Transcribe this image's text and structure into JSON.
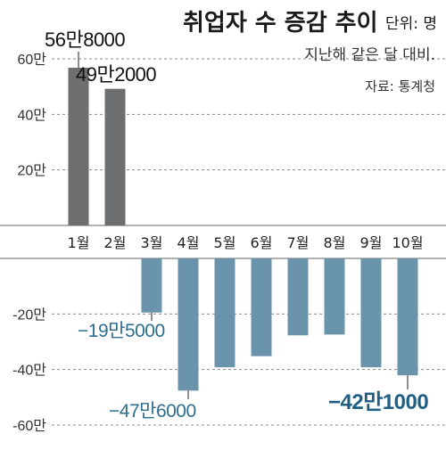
{
  "chart_data": {
    "type": "bar",
    "title": "취업자 수 증감 추이",
    "unit_label": "단위: 명",
    "subtitle": "지난해 같은 달 대비.",
    "source": "자료: 통계청",
    "categories": [
      "1월",
      "2월",
      "3월",
      "4월",
      "5월",
      "6월",
      "7월",
      "8월",
      "9월",
      "10월"
    ],
    "values": [
      568000,
      492000,
      -195000,
      -476000,
      -392000,
      -352000,
      -277000,
      -274000,
      -392000,
      -421000
    ],
    "ylim": [
      -600000,
      600000
    ],
    "yticks": [
      {
        "value": 600000,
        "label": "60만"
      },
      {
        "value": 400000,
        "label": "40만"
      },
      {
        "value": 200000,
        "label": "20만"
      },
      {
        "value": -200000,
        "label": "-20만"
      },
      {
        "value": -400000,
        "label": "-40만"
      },
      {
        "value": -600000,
        "label": "-60만"
      }
    ],
    "grid": true,
    "colors": {
      "positive": "#6d6e70",
      "negative": "#6a94ab"
    },
    "data_labels": [
      {
        "index": 0,
        "text": "56만8000",
        "style": "pos"
      },
      {
        "index": 1,
        "text": "49만2000",
        "style": "pos"
      },
      {
        "index": 2,
        "text": "−19만5000",
        "style": "neg"
      },
      {
        "index": 3,
        "text": "−47만6000",
        "style": "neg"
      },
      {
        "index": 9,
        "text": "−42만1000",
        "style": "big"
      }
    ]
  }
}
